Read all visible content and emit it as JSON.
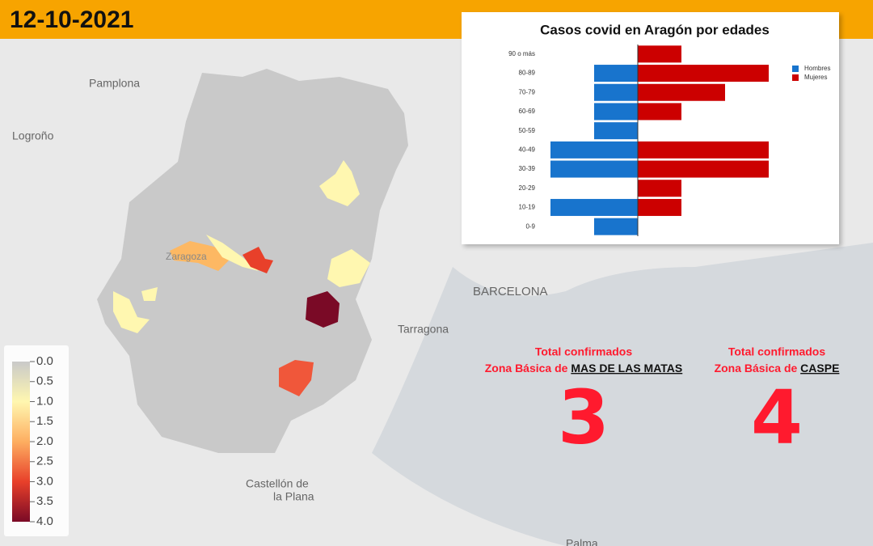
{
  "header": {
    "date": "12-10-2021"
  },
  "map": {
    "cities": [
      "Pamplona",
      "Logroño",
      "BARCELONA",
      "Tarragona",
      "Castellón de",
      "la Plana",
      "Zaragoza",
      "Palma"
    ]
  },
  "colorbar": {
    "colors": [
      "#c9c9c9",
      "#fff7b0",
      "#fdae61",
      "#e8402a",
      "#7a0a26"
    ],
    "ticks": [
      {
        "value": 0,
        "label": "0.0"
      },
      {
        "value": 0.5,
        "label": "0.5"
      },
      {
        "value": 1,
        "label": "1.0"
      },
      {
        "value": 1.5,
        "label": "1.5"
      },
      {
        "value": 2,
        "label": "2.0"
      },
      {
        "value": 2.5,
        "label": "2.5"
      },
      {
        "value": 3,
        "label": "3.0"
      },
      {
        "value": 3.5,
        "label": "3.5"
      },
      {
        "value": 4,
        "label": "4.0"
      }
    ],
    "lim": [
      0,
      4
    ]
  },
  "zones": [
    {
      "title": "Total confirmados",
      "prefix": "Zona Básica de",
      "name": "MAS DE LAS MATAS",
      "total": 3
    },
    {
      "title": "Total confirmados",
      "prefix": "Zona Básica de",
      "name": "CASPE",
      "total": 4
    }
  ],
  "chart_data": {
    "type": "pyramid",
    "title": "Casos covid en Aragón por edades",
    "categories": [
      "90 o más",
      "80-89",
      "70-79",
      "60-69",
      "50-59",
      "40-49",
      "30-39",
      "20-29",
      "10-19",
      "0-9"
    ],
    "series": [
      {
        "name": "Hombres",
        "color": "#1874cd",
        "values": [
          0,
          1,
          1,
          1,
          1,
          2,
          2,
          0,
          2,
          1
        ]
      },
      {
        "name": "Mujeres",
        "color": "#cc0000",
        "values": [
          1,
          3,
          2,
          1,
          0,
          3,
          3,
          1,
          1,
          0
        ]
      }
    ],
    "legend": "upper right"
  }
}
